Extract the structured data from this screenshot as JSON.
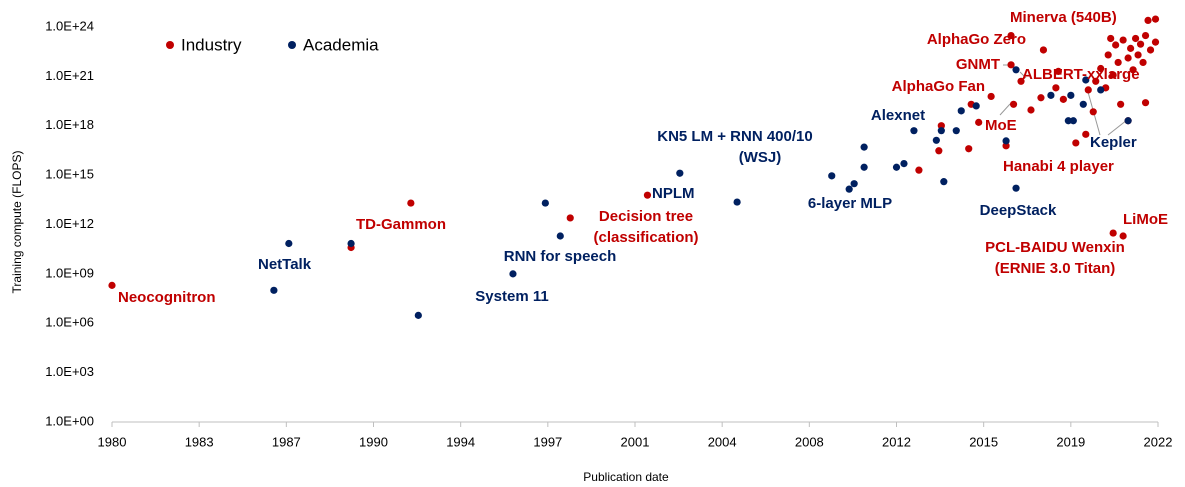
{
  "chart_data": {
    "type": "scatter",
    "xlabel": "Publication date",
    "ylabel": "Training compute (FLOPS)",
    "xlim": [
      1980,
      2022
    ],
    "xticks": [
      1980,
      {
        "value": 1983.5,
        "label": "1983"
      },
      1987,
      {
        "value": 1990.5,
        "label": "1990"
      },
      1994,
      {
        "value": 1997.5,
        "label": "1997"
      },
      2001,
      {
        "value": 2004.5,
        "label": "2004"
      },
      2008,
      {
        "value": 2011.5,
        "label": "2012"
      },
      2015,
      {
        "value": 2018.5,
        "label": "2019"
      },
      2022
    ],
    "ylim": [
      1,
      1e+25
    ],
    "log_y": true,
    "grid": false,
    "legend": "upper left",
    "yticks": [
      {
        "value": 1,
        "label": "1.0E+00"
      },
      {
        "value": 1000.0,
        "label": "1.0E+03"
      },
      {
        "value": 1000000.0,
        "label": "1.0E+06"
      },
      {
        "value": 1000000000.0,
        "label": "1.0E+09"
      },
      {
        "value": 1000000000000.0,
        "label": "1.0E+12"
      },
      {
        "value": 1000000000000000.0,
        "label": "1.0E+15"
      },
      {
        "value": 1e+18,
        "label": "1.0E+18"
      },
      {
        "value": 1e+21,
        "label": "1.0E+21"
      },
      {
        "value": 1e+24,
        "label": "1.0E+24"
      }
    ],
    "series": [
      {
        "name": "Industry",
        "color": "#c00000",
        "x": [
          1980.0,
          1989.6,
          1992.0,
          1998.4,
          2001.5,
          2012.4,
          2013.2,
          2013.3,
          2014.4,
          2014.5,
          2014.8,
          2015.3,
          2015.9,
          2016.1,
          2016.2,
          2016.1,
          2016.5,
          2016.9,
          2017.3,
          2017.4,
          2017.9,
          2018.0,
          2018.2,
          2018.7,
          2019.1,
          2019.2,
          2019.4,
          2019.5,
          2019.7,
          2019.9,
          2020.0,
          2020.2,
          2020.3,
          2020.4,
          2020.5,
          2020.6,
          2020.8,
          2020.9,
          2021.0,
          2021.1,
          2021.2,
          2021.3,
          2021.4,
          2021.5,
          2021.6,
          2021.9,
          2021.7,
          2021.9,
          2021.5,
          2020.2,
          2020.6,
          2020.1,
          2020.8
        ],
        "values": [
          200000000.0,
          40000000000.0,
          20000000000000.0,
          2500000000000.0,
          60000000000000.0,
          2000000000000000.0,
          3e+16,
          1e+18,
          4e+16,
          2e+19,
          1.6e+18,
          6e+19,
          6e+16,
          3e+23,
          2e+19,
          5e+21,
          5e+20,
          9e+18,
          5e+19,
          4e+22,
          2e+20,
          2e+21,
          4e+19,
          9e+16,
          3e+17,
          1.5e+20,
          7e+18,
          5e+20,
          3e+21,
          2e+20,
          2e+22,
          1.2e+21,
          8e+22,
          7e+21,
          2e+19,
          1.6e+23,
          1.3e+22,
          5e+22,
          2.5e+21,
          2e+23,
          2e+22,
          9e+22,
          7e+21,
          3e+23,
          2.5e+24,
          3e+24,
          4e+22,
          1.2e+23,
          2.5e+19,
          300000000000.0,
          200000000000.0,
          2e+23,
          2e+18
        ],
        "annotations": [
          "Neocognitron",
          "TD-Gammon",
          "Decision tree",
          "(classification)",
          "AlphaGo Fan",
          "AlphaGo Zero",
          "GNMT",
          "Minerva (540B)",
          "ALBERT-xxlarge",
          "MoE",
          "Hanabi 4 player",
          "LiMoE",
          "PCL-BAIDU Wenxin",
          "(ERNIE 3.0 Titan)"
        ]
      },
      {
        "name": "Academia",
        "color": "#002060",
        "x": [
          1986.5,
          1987.1,
          1989.6,
          1992.3,
          1996.1,
          1997.4,
          1998.0,
          2002.8,
          2005.1,
          2008.9,
          2009.6,
          2009.8,
          2010.2,
          2010.2,
          2011.5,
          2011.8,
          2012.2,
          2013.1,
          2013.3,
          2013.4,
          2013.9,
          2014.1,
          2014.7,
          2015.9,
          2016.3,
          2017.7,
          2018.5,
          2019.0,
          2018.4,
          2018.6,
          2019.1,
          2019.7,
          2020.8,
          2016.3
        ],
        "values": [
          100000000.0,
          70000000000.0,
          70000000000.0,
          3000000.0,
          1000000000.0,
          20000000000000.0,
          200000000000.0,
          1300000000000000.0,
          23000000000000.0,
          900000000000000.0,
          140000000000000.0,
          300000000000000.0,
          5e+16,
          3000000000000000.0,
          3000000000000000.0,
          5000000000000000.0,
          5e+17,
          1.3e+17,
          5e+17,
          400000000000000.0,
          5e+17,
          8e+18,
          1.6e+19,
          1.2e+17,
          160000000000000.0,
          7e+19,
          7e+19,
          2e+19,
          2e+18,
          2e+18,
          6e+20,
          1.5e+20,
          2e+18,
          2.5e+21
        ],
        "annotations": [
          "NetTalk",
          "RNN for speech",
          "System 11",
          "NPLM",
          "KN5 LM + RNN 400/10",
          "(WSJ)",
          "6-layer MLP",
          "Alexnet",
          "DeepStack",
          "Kepler"
        ]
      }
    ]
  }
}
